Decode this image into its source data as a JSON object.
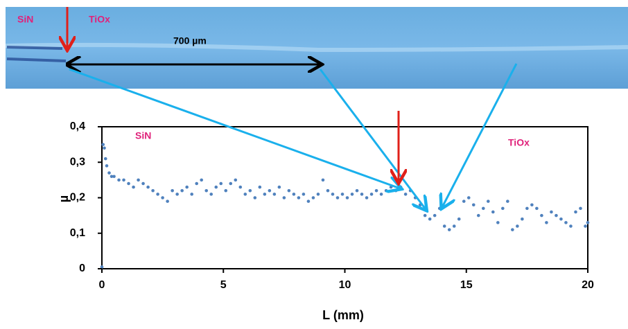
{
  "micrograph": {
    "labels": [
      "SiN",
      "TiOx",
      "700 µm"
    ]
  },
  "chart_data": {
    "type": "scatter",
    "xlabel": "L (mm)",
    "ylabel": "µ",
    "annotations": [
      "SiN",
      "TiOx"
    ],
    "color": "#4f81bd",
    "xlim": [
      0,
      20
    ],
    "xticks": [
      0,
      5,
      10,
      15,
      20
    ],
    "ylim": [
      0,
      0.4
    ],
    "yticks": [
      0,
      {
        "value": 0.1,
        "label": "0,1"
      },
      {
        "value": 0.2,
        "label": "0,2"
      },
      {
        "value": 0.3,
        "label": "0,3"
      },
      {
        "value": 0.4,
        "label": "0,4"
      }
    ],
    "x": [
      0,
      0.05,
      0.1,
      0.15,
      0.2,
      0.3,
      0.4,
      0.5,
      0.7,
      0.9,
      1.1,
      1.3,
      1.5,
      1.7,
      1.9,
      2.1,
      2.3,
      2.5,
      2.7,
      2.9,
      3.1,
      3.3,
      3.5,
      3.7,
      3.9,
      4.1,
      4.3,
      4.5,
      4.7,
      4.9,
      5.1,
      5.3,
      5.5,
      5.7,
      5.9,
      6.1,
      6.3,
      6.5,
      6.7,
      6.9,
      7.1,
      7.3,
      7.5,
      7.7,
      7.9,
      8.1,
      8.3,
      8.5,
      8.7,
      8.9,
      9.1,
      9.3,
      9.5,
      9.7,
      9.9,
      10.1,
      10.3,
      10.5,
      10.7,
      10.9,
      11.1,
      11.3,
      11.5,
      11.7,
      11.9,
      12.1,
      12.3,
      12.5,
      12.7,
      12.9,
      13.1,
      13.3,
      13.5,
      13.7,
      13.9,
      14.1,
      14.3,
      14.5,
      14.7,
      14.9,
      15.1,
      15.3,
      15.5,
      15.7,
      15.9,
      16.1,
      16.3,
      16.5,
      16.7,
      16.9,
      17.1,
      17.3,
      17.5,
      17.7,
      17.9,
      18.1,
      18.3,
      18.5,
      18.7,
      18.9,
      19.1,
      19.3,
      19.5,
      19.7,
      19.9,
      20
    ],
    "values": [
      0.005,
      0.35,
      0.34,
      0.31,
      0.29,
      0.27,
      0.26,
      0.26,
      0.25,
      0.25,
      0.24,
      0.23,
      0.25,
      0.24,
      0.23,
      0.22,
      0.21,
      0.2,
      0.19,
      0.22,
      0.21,
      0.22,
      0.23,
      0.21,
      0.24,
      0.25,
      0.22,
      0.21,
      0.23,
      0.24,
      0.22,
      0.24,
      0.25,
      0.23,
      0.21,
      0.22,
      0.2,
      0.23,
      0.21,
      0.22,
      0.21,
      0.23,
      0.2,
      0.22,
      0.21,
      0.2,
      0.21,
      0.19,
      0.2,
      0.21,
      0.25,
      0.22,
      0.21,
      0.2,
      0.21,
      0.2,
      0.21,
      0.22,
      0.21,
      0.2,
      0.21,
      0.22,
      0.21,
      0.22,
      0.23,
      0.22,
      0.23,
      0.21,
      0.22,
      0.2,
      0.18,
      0.15,
      0.14,
      0.15,
      0.17,
      0.12,
      0.11,
      0.12,
      0.14,
      0.19,
      0.2,
      0.18,
      0.15,
      0.17,
      0.19,
      0.16,
      0.13,
      0.17,
      0.19,
      0.11,
      0.12,
      0.14,
      0.17,
      0.18,
      0.17,
      0.15,
      0.13,
      0.16,
      0.15,
      0.14,
      0.13,
      0.12,
      0.16,
      0.17,
      0.12,
      0.13
    ]
  }
}
